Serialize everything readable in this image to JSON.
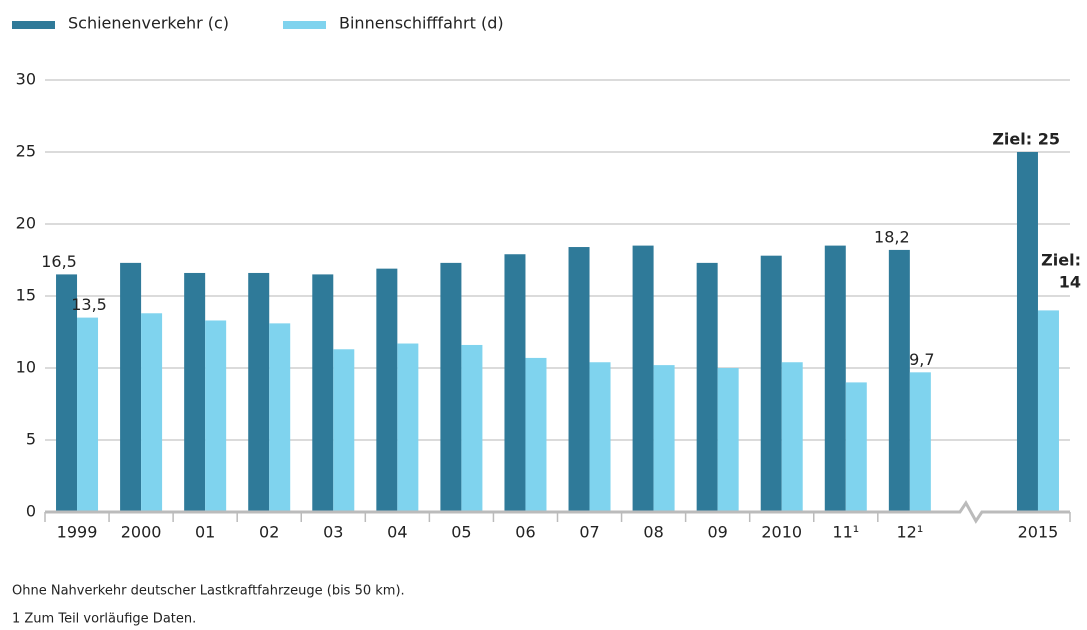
{
  "chart_data": {
    "type": "bar",
    "categories": [
      "1999",
      "2000",
      "01",
      "02",
      "03",
      "04",
      "05",
      "06",
      "07",
      "08",
      "09",
      "2010",
      "11¹",
      "12¹",
      null,
      "2015"
    ],
    "series": [
      {
        "name": "Schienenverkehr (c)",
        "color": "#2f7a99",
        "values": [
          16.5,
          17.3,
          16.6,
          16.6,
          16.5,
          16.9,
          17.3,
          17.9,
          18.4,
          18.5,
          17.3,
          17.8,
          18.5,
          18.2,
          null,
          25
        ],
        "value_labels": [
          "16,5",
          null,
          null,
          null,
          null,
          null,
          null,
          null,
          null,
          null,
          null,
          null,
          null,
          "18,2",
          null,
          "Ziel: 25"
        ]
      },
      {
        "name": "Binnenschifffahrt (d)",
        "color": "#7fd3ee",
        "values": [
          13.5,
          13.8,
          13.3,
          13.1,
          11.3,
          11.7,
          11.6,
          10.7,
          10.4,
          10.2,
          10.0,
          10.4,
          9.0,
          9.7,
          null,
          14
        ],
        "value_labels": [
          "13,5",
          null,
          null,
          null,
          null,
          null,
          null,
          null,
          null,
          null,
          null,
          null,
          null,
          "9,7",
          null,
          "Ziel: 14"
        ]
      }
    ],
    "ylim": [
      0,
      30
    ],
    "yticks": [
      0,
      5,
      10,
      15,
      20,
      25,
      30
    ],
    "grid": true,
    "notes": [
      "Ohne Nahverkehr deutscher Lastkraftfahrzeuge (bis 50 km).",
      "1 Zum Teil vorläufige Daten."
    ]
  }
}
